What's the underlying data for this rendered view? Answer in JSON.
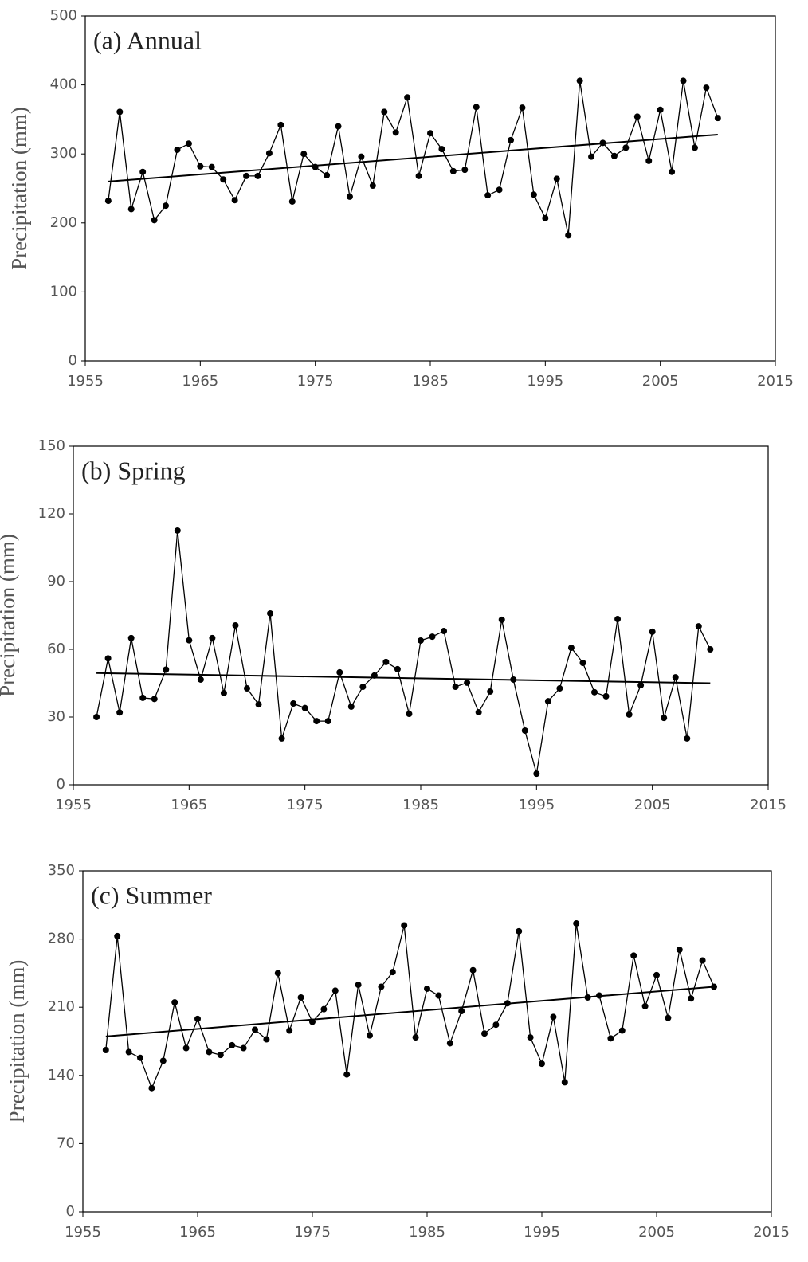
{
  "chart_data": [
    {
      "type": "line",
      "title": "(a) Annual",
      "y_label": "Precipitation (mm)",
      "color": "#000000",
      "x": [
        1957,
        1958,
        1959,
        1960,
        1961,
        1962,
        1963,
        1964,
        1965,
        1966,
        1967,
        1968,
        1969,
        1970,
        1971,
        1972,
        1973,
        1974,
        1975,
        1976,
        1977,
        1978,
        1979,
        1980,
        1981,
        1982,
        1983,
        1984,
        1985,
        1986,
        1987,
        1988,
        1989,
        1990,
        1991,
        1992,
        1993,
        1994,
        1995,
        1996,
        1997,
        1998,
        1999,
        2000,
        2001,
        2002,
        2003,
        2004,
        2005,
        2006,
        2007,
        2008,
        2009,
        2010
      ],
      "values": [
        232,
        361,
        220,
        274,
        204,
        225,
        306,
        315,
        282,
        281,
        263,
        233,
        268,
        268,
        301,
        342,
        231,
        300,
        281,
        269,
        340,
        238,
        296,
        254,
        361,
        331,
        382,
        268,
        330,
        307,
        275,
        277,
        368,
        240,
        248,
        320,
        367,
        241,
        207,
        264,
        182,
        406,
        296,
        316,
        297,
        309,
        354,
        290,
        364,
        274,
        406,
        309,
        396,
        352
      ],
      "trend": {
        "x": [
          1957,
          2010
        ],
        "values": [
          260,
          328
        ]
      },
      "xlim": [
        1955,
        2015
      ],
      "xticks": [
        1955,
        1965,
        1975,
        1985,
        1995,
        2005,
        2015
      ],
      "ylim": [
        0,
        500
      ],
      "yticks": [
        0,
        100,
        200,
        300,
        400,
        500
      ]
    },
    {
      "type": "line",
      "title": "(b) Spring",
      "y_label": "Precipitation (mm)",
      "color": "#000000",
      "x": [
        1957,
        1958,
        1959,
        1960,
        1961,
        1962,
        1963,
        1964,
        1965,
        1966,
        1967,
        1968,
        1969,
        1970,
        1971,
        1972,
        1973,
        1974,
        1975,
        1976,
        1977,
        1978,
        1979,
        1980,
        1981,
        1982,
        1983,
        1984,
        1985,
        1986,
        1987,
        1988,
        1989,
        1990,
        1991,
        1992,
        1993,
        1994,
        1995,
        1996,
        1997,
        1998,
        1999,
        2000,
        2001,
        2002,
        2003,
        2004,
        2005,
        2006,
        2007,
        2008,
        2009,
        2010
      ],
      "values": [
        30,
        56,
        32,
        65,
        38.5,
        38,
        51,
        112.6,
        64,
        46.6,
        65,
        40.6,
        70.6,
        42.7,
        35.6,
        75.9,
        20.5,
        36,
        34,
        28.2,
        28.2,
        49.8,
        34.6,
        43.4,
        48.4,
        54.4,
        51.2,
        31.4,
        63.9,
        65.6,
        68.1,
        43.4,
        45.2,
        32.1,
        41.3,
        73.1,
        46.6,
        24,
        4.9,
        37,
        42.7,
        60.7,
        54,
        41,
        39.2,
        73.4,
        31.1,
        44.1,
        67.8,
        29.6,
        47.6,
        20.5,
        70.2,
        60
      ],
      "trend": {
        "x": [
          1957,
          2010
        ],
        "values": [
          49.5,
          45
        ]
      },
      "xlim": [
        1955,
        2015
      ],
      "xticks": [
        1955,
        1965,
        1975,
        1985,
        1995,
        2005,
        2015
      ],
      "ylim": [
        0,
        150
      ],
      "yticks": [
        0,
        30,
        60,
        90,
        120,
        150
      ]
    },
    {
      "type": "line",
      "title": "(c) Summer",
      "y_label": "Precipitation (mm)",
      "color": "#000000",
      "x": [
        1957,
        1958,
        1959,
        1960,
        1961,
        1962,
        1963,
        1964,
        1965,
        1966,
        1967,
        1968,
        1969,
        1970,
        1971,
        1972,
        1973,
        1974,
        1975,
        1976,
        1977,
        1978,
        1979,
        1980,
        1981,
        1982,
        1983,
        1984,
        1985,
        1986,
        1987,
        1988,
        1989,
        1990,
        1991,
        1992,
        1993,
        1994,
        1995,
        1996,
        1997,
        1998,
        1999,
        2000,
        2001,
        2002,
        2003,
        2004,
        2005,
        2006,
        2007,
        2008,
        2009,
        2010
      ],
      "values": [
        166,
        283,
        164,
        158,
        127,
        155,
        215,
        168,
        198,
        164,
        161,
        171,
        168,
        187,
        177,
        245,
        186,
        220,
        195,
        208,
        227,
        141,
        233,
        181,
        231,
        246,
        294,
        179,
        229,
        222,
        173,
        206,
        248,
        183,
        192,
        214,
        288,
        179,
        152,
        200,
        133,
        296,
        220,
        222,
        178,
        186,
        263,
        211,
        243,
        199,
        269,
        219,
        258,
        231
      ],
      "trend": {
        "x": [
          1957,
          2010
        ],
        "values": [
          180,
          231
        ]
      },
      "xlim": [
        1955,
        2015
      ],
      "xticks": [
        1955,
        1965,
        1975,
        1985,
        1995,
        2005,
        2015
      ],
      "ylim": [
        0,
        350
      ],
      "yticks": [
        0,
        70,
        140,
        210,
        280,
        350
      ]
    }
  ]
}
